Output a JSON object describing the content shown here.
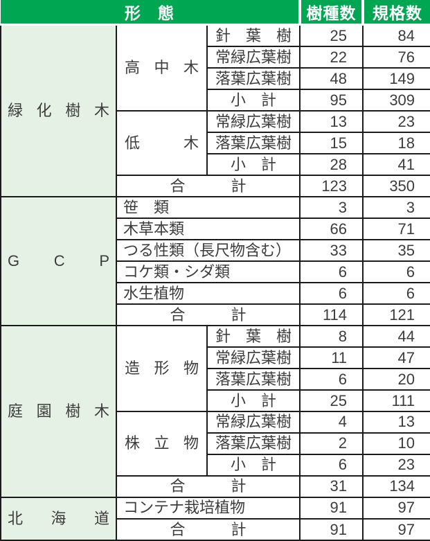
{
  "colors": {
    "header_bg": "#00a651",
    "header_text": "#ffffff",
    "group_column_bg": "#e6f1e5",
    "border": "#1b1b1b",
    "body_text": "#3c3c3c"
  },
  "header": {
    "form_label": "形　態",
    "species_label": "樹種数",
    "spec_label": "規格数"
  },
  "sections": [
    {
      "group": "緑化樹木",
      "subgroups": [
        {
          "label": "高中木",
          "rows": [
            {
              "label": "針　葉　樹",
              "species": 25,
              "specs": 84
            },
            {
              "label": "常緑広葉樹",
              "species": 22,
              "specs": 76
            },
            {
              "label": "落葉広葉樹",
              "species": 48,
              "specs": 149
            },
            {
              "label": "小　計",
              "species": 95,
              "specs": 309
            }
          ]
        },
        {
          "label": "低木",
          "rows": [
            {
              "label": "常緑広葉樹",
              "species": 13,
              "specs": 23
            },
            {
              "label": "落葉広葉樹",
              "species": 15,
              "specs": 18
            },
            {
              "label": "小　計",
              "species": 28,
              "specs": 41
            }
          ]
        }
      ],
      "total": {
        "label": "合　　　計",
        "species": 123,
        "specs": 350
      }
    },
    {
      "group": "G　C　P",
      "items": [
        {
          "label": "笹　類",
          "species": 3,
          "specs": 3
        },
        {
          "label": "木草本類",
          "species": 66,
          "specs": 71
        },
        {
          "label": "つる性類（長尺物含む）",
          "species": 33,
          "specs": 35
        },
        {
          "label": "コケ類・シダ類",
          "species": 6,
          "specs": 6
        },
        {
          "label": "水生植物",
          "species": 6,
          "specs": 6
        }
      ],
      "total": {
        "label": "合　　　計",
        "species": 114,
        "specs": 121
      }
    },
    {
      "group": "庭園樹木",
      "subgroups": [
        {
          "label": "造形物",
          "rows": [
            {
              "label": "針　葉　樹",
              "species": 8,
              "specs": 44
            },
            {
              "label": "常緑広葉樹",
              "species": 11,
              "specs": 47
            },
            {
              "label": "落葉広葉樹",
              "species": 6,
              "specs": 20
            },
            {
              "label": "小　計",
              "species": 25,
              "specs": 111
            }
          ]
        },
        {
          "label": "株立物",
          "rows": [
            {
              "label": "常緑広葉樹",
              "species": 4,
              "specs": 13
            },
            {
              "label": "落葉広葉樹",
              "species": 2,
              "specs": 10
            },
            {
              "label": "小　計",
              "species": 6,
              "specs": 23
            }
          ]
        }
      ],
      "total": {
        "label": "合　　　計",
        "species": 31,
        "specs": 134
      }
    },
    {
      "group": "北海道",
      "items": [
        {
          "label": "コンテナ栽培植物",
          "species": 91,
          "specs": 97
        }
      ],
      "total": {
        "label": "合　　　計",
        "species": 91,
        "specs": 97
      }
    }
  ]
}
